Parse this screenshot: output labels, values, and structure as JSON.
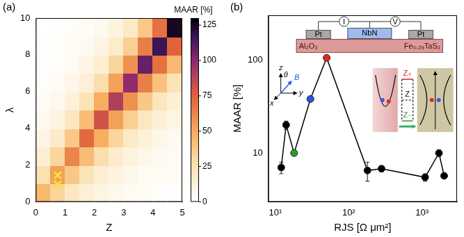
{
  "chart_data": [
    {
      "type": "heatmap",
      "panel": "(a)",
      "x_label": "Z",
      "y_label": "λ",
      "x_bins": [
        0,
        0.5,
        1,
        1.5,
        2,
        2.5,
        3,
        3.5,
        4,
        4.5,
        5
      ],
      "y_bins": [
        0,
        1,
        2,
        3,
        4,
        5,
        6,
        7,
        8,
        9,
        10
      ],
      "cells": [
        [
          45,
          32,
          22,
          14,
          10,
          6,
          4,
          3,
          2,
          1
        ],
        [
          27,
          54,
          38,
          25,
          16,
          11,
          7,
          4,
          4,
          3
        ],
        [
          16,
          32,
          63,
          43,
          28,
          18,
          12,
          8,
          5,
          4
        ],
        [
          9,
          19,
          38,
          72,
          49,
          32,
          20,
          13,
          8,
          5
        ],
        [
          5,
          11,
          22,
          43,
          81,
          54,
          35,
          22,
          14,
          9
        ],
        [
          3,
          6,
          13,
          25,
          49,
          90,
          59,
          38,
          23,
          15
        ],
        [
          2,
          4,
          8,
          14,
          28,
          54,
          99,
          65,
          41,
          25
        ],
        [
          1,
          2,
          4,
          9,
          16,
          32,
          59,
          108,
          70,
          44
        ],
        [
          1,
          2,
          3,
          5,
          10,
          18,
          35,
          65,
          117,
          75
        ],
        [
          0,
          1,
          2,
          3,
          6,
          11,
          20,
          38,
          70,
          125
        ]
      ],
      "xlim": [
        0,
        5
      ],
      "xticks": [
        0,
        1,
        2,
        3,
        4,
        5
      ],
      "ylim": [
        0,
        10
      ],
      "yticks": [
        0,
        2,
        4,
        6,
        8,
        10
      ],
      "grid": false,
      "colorbar": {
        "label": "MAAR [%]",
        "range": [
          0,
          130
        ],
        "ticks": [
          0,
          25,
          50,
          75,
          100,
          125
        ]
      },
      "markers": {
        "x": [
          0.75,
          0.75
        ],
        "y": [
          0.95,
          1.45
        ],
        "color": "#f2e33a",
        "marker": "x"
      }
    },
    {
      "type": "line",
      "panel": "(b)",
      "x_label": "RJS [Ω μm²]",
      "y_label": "MAAR [%]",
      "log": true,
      "x": [
        12,
        14,
        18,
        30,
        50,
        180,
        280,
        1100,
        1700,
        2000
      ],
      "values": [
        7,
        20,
        10,
        38,
        105,
        6.5,
        6.8,
        5.5,
        10,
        5.7
      ],
      "errors": [
        1,
        2,
        0.5,
        0.5,
        3,
        1.5,
        0.5,
        0.5,
        0.8,
        0.3
      ],
      "color": "#000000",
      "colors": [
        "#000000",
        "#000000",
        "#2a9d2a",
        "#2a55e0",
        "#e8231f",
        "#000000",
        "#000000",
        "#000000",
        "#000000",
        "#000000"
      ],
      "marker": "circle",
      "line_style": "solid",
      "grid": false,
      "xlim": [
        8,
        3000
      ],
      "xticks": [
        {
          "value": 10,
          "label": "10¹"
        },
        {
          "value": 100,
          "label": "10²"
        },
        {
          "value": 1000,
          "label": "10³"
        }
      ],
      "ylim": [
        3,
        300
      ],
      "yticks": [
        10,
        100
      ],
      "inset": {
        "circuit": [
          "I",
          "V"
        ],
        "electrodes": [
          "Pt",
          "NbN",
          "Pt"
        ],
        "substrate": [
          "Al₂O₃",
          "Fe₀.₂₉TaS₂"
        ],
        "axes": [
          "x",
          "y",
          "z",
          "θ",
          "B"
        ],
        "barriers": [
          "Z₊",
          "Z",
          "Z₋"
        ]
      }
    }
  ]
}
